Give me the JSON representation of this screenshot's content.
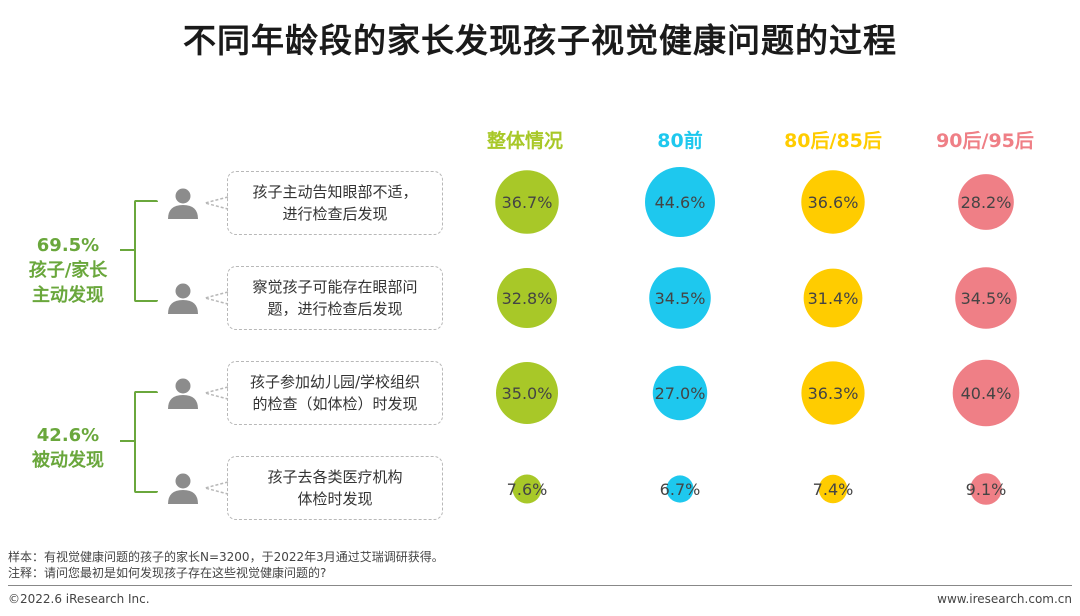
{
  "title": "不同年龄段的家长发现孩子视觉健康问题的过程",
  "chart_data": {
    "type": "bubble",
    "columns": [
      {
        "label": "整体情况",
        "color": "#a8c828"
      },
      {
        "label": "80前",
        "color": "#1ec8ee"
      },
      {
        "label": "80后/85后",
        "color": "#ffcc00"
      },
      {
        "label": "90后/95后",
        "color": "#ef7f86"
      }
    ],
    "rows": [
      {
        "label": "孩子主动告知眼部不适，进行检查后发现",
        "lines": [
          "孩子主动告知眼部不适，",
          "进行检查后发现"
        ]
      },
      {
        "label": "察觉孩子可能存在眼部问题，进行检查后发现",
        "lines": [
          "察觉孩子可能存在眼部问",
          "题，进行检查后发现"
        ]
      },
      {
        "label": "孩子参加幼儿园/学校组织的检查（如体检）时发现",
        "lines": [
          "孩子参加幼儿园/学校组织",
          "的检查（如体检）时发现"
        ]
      },
      {
        "label": "孩子去各类医疗机构体检时发现",
        "lines": [
          "孩子去各类医疗机构",
          "体检时发现"
        ]
      }
    ],
    "values": [
      [
        36.7,
        44.6,
        36.6,
        28.2
      ],
      [
        32.8,
        34.5,
        31.4,
        34.5
      ],
      [
        35.0,
        27.0,
        36.3,
        40.4
      ],
      [
        7.6,
        6.7,
        7.4,
        9.1
      ]
    ],
    "value_labels": [
      [
        "36.7%",
        "44.6%",
        "36.6%",
        "28.2%"
      ],
      [
        "32.8%",
        "34.5%",
        "31.4%",
        "34.5%"
      ],
      [
        "35.0%",
        "27.0%",
        "36.3%",
        "40.4%"
      ],
      [
        "7.6%",
        "6.7%",
        "7.4%",
        "9.1%"
      ]
    ],
    "unit": "%"
  },
  "groups": [
    {
      "value": "69.5%",
      "line1": "孩子/家长",
      "line2": "主动发现"
    },
    {
      "value": "42.6%",
      "line1": "被动发现",
      "line2": ""
    }
  ],
  "notes": {
    "sample": "样本：有视觉健康问题的孩子的家长N=3200，于2022年3月通过艾瑞调研获得。",
    "remark": "注释：请问您最初是如何发现孩子存在这些视觉健康问题的?"
  },
  "footer": {
    "copyright": "©2022.6 iResearch Inc.",
    "website": "www.iresearch.com.cn"
  },
  "colors": {
    "group_green": "#6aa73c",
    "icon_gray": "#8c8c8c"
  },
  "icons": [
    "person-icon"
  ]
}
